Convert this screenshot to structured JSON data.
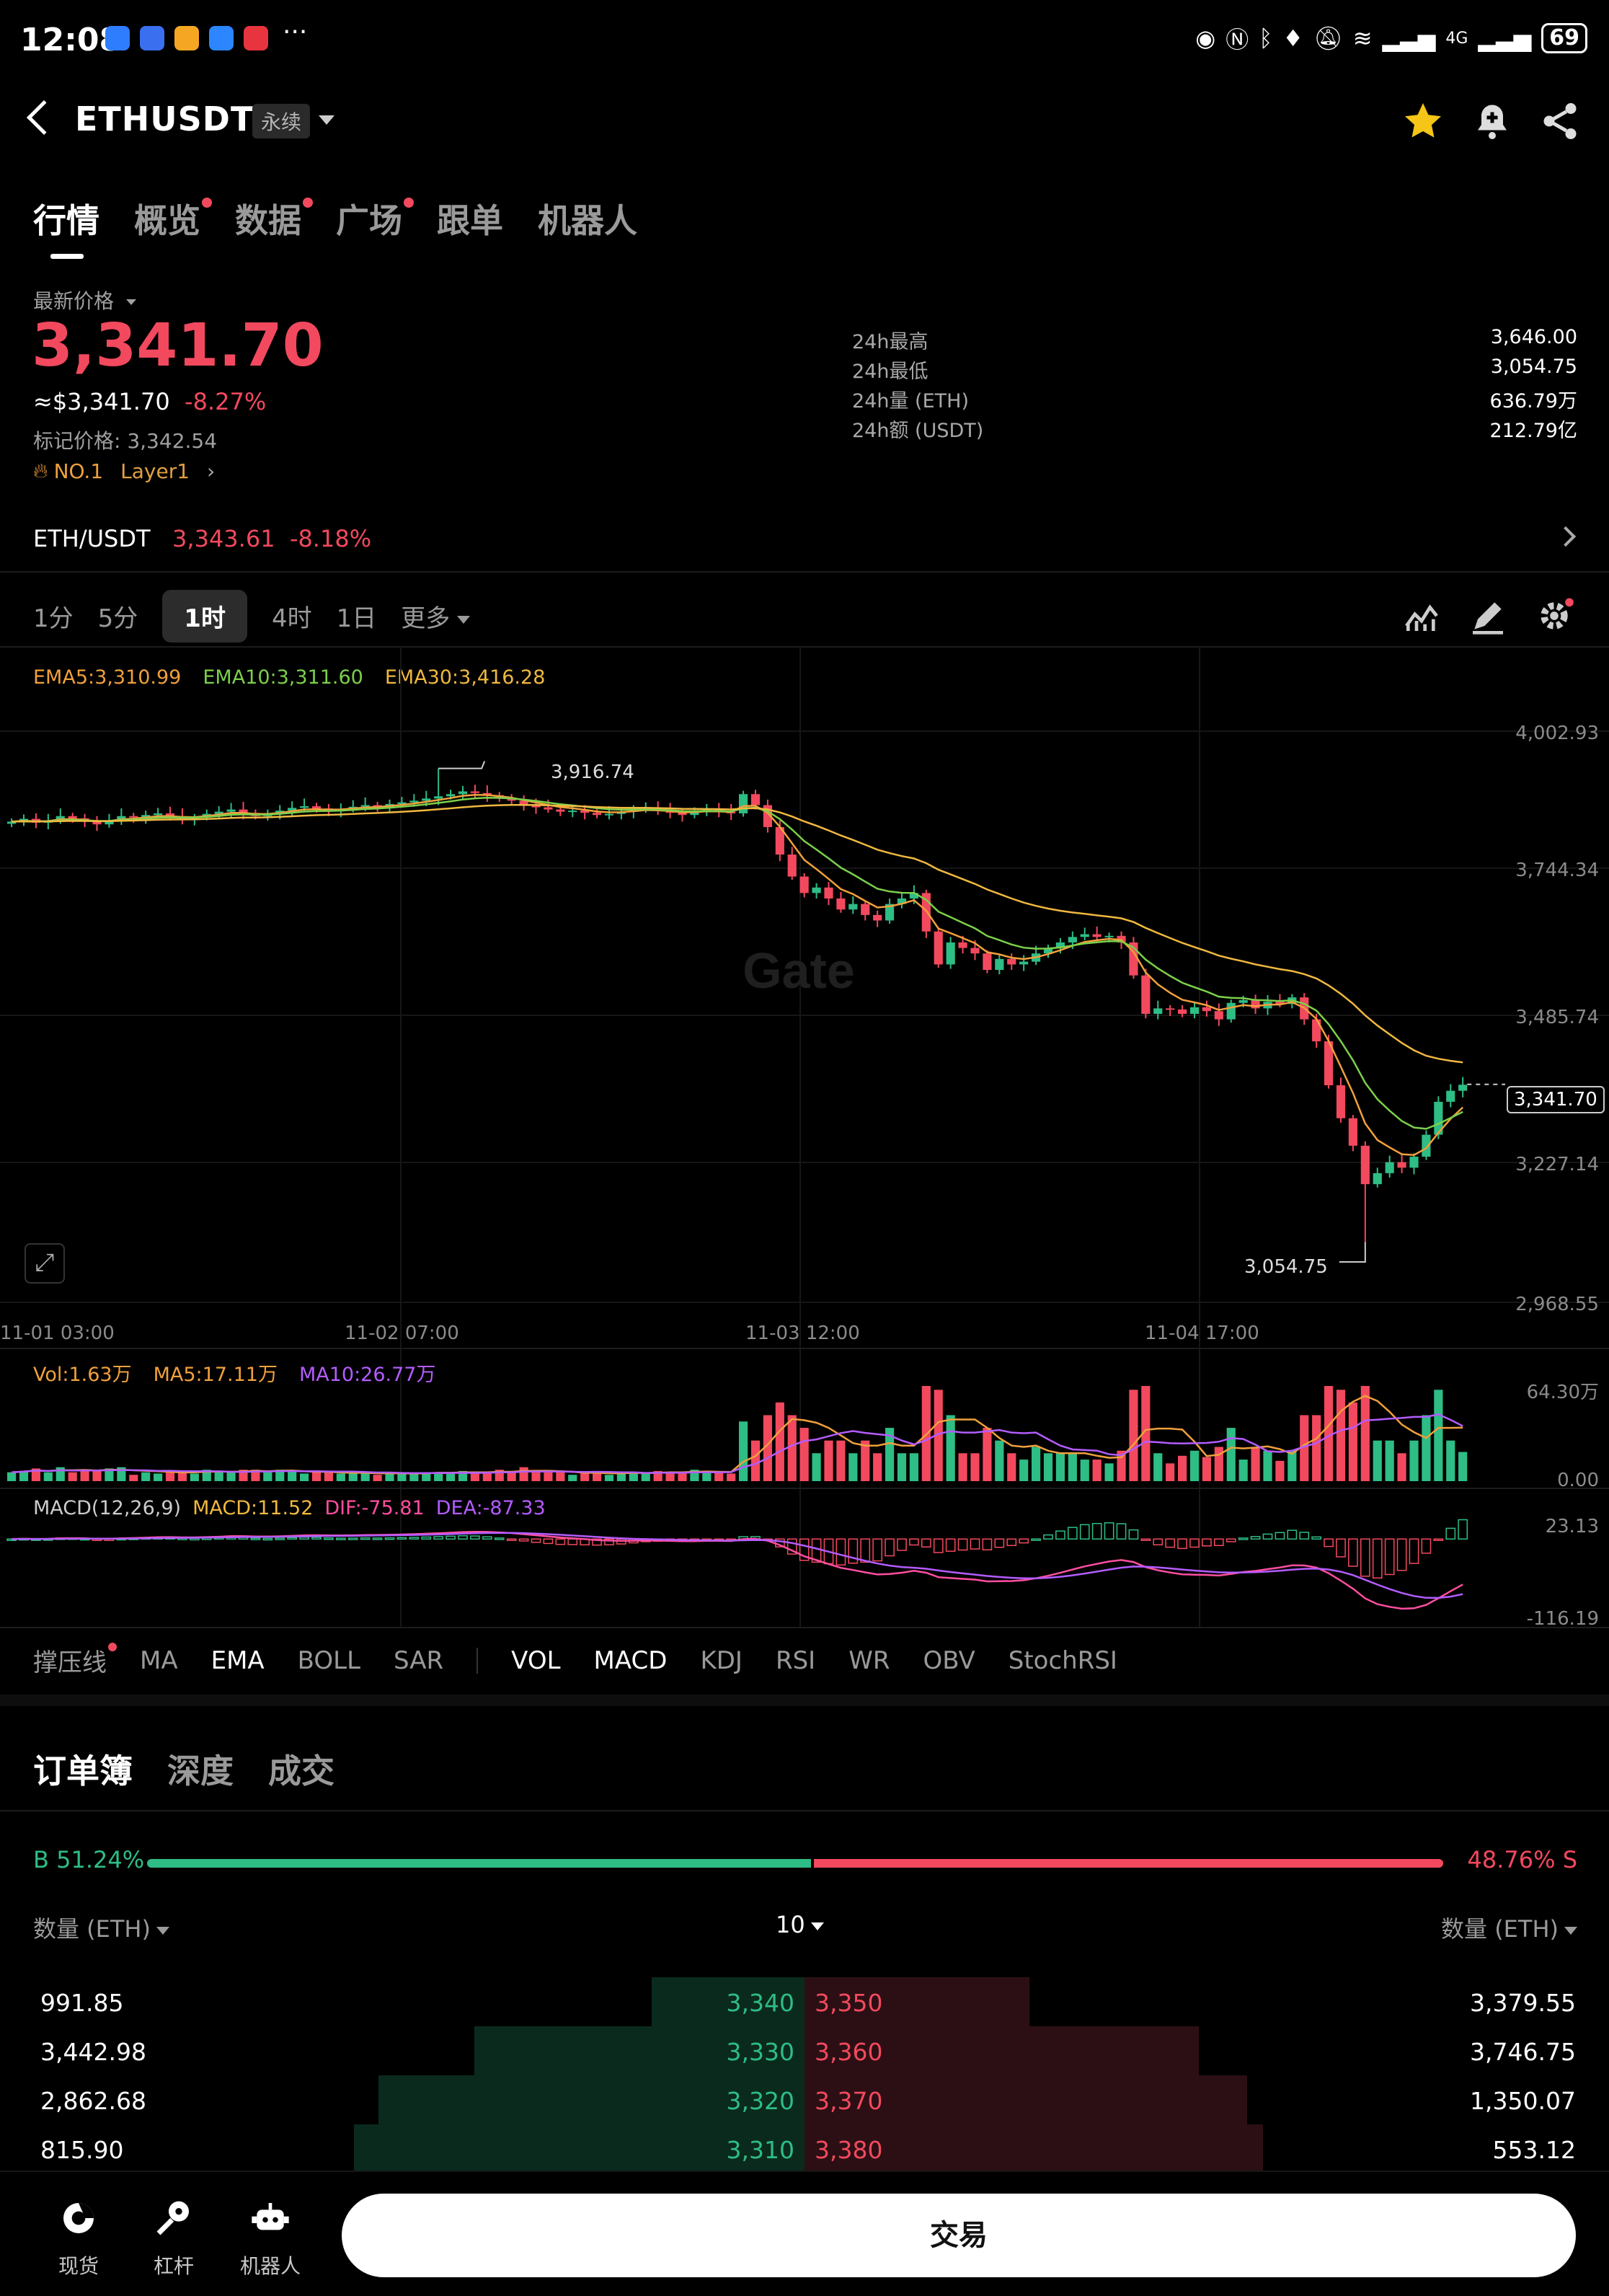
{
  "status_bar": {
    "time": "12:08",
    "battery": "69",
    "network": "4G"
  },
  "header": {
    "symbol": "ETHUSDT",
    "contract_type": "永续"
  },
  "tabs": [
    {
      "label": "行情",
      "active": true,
      "dot": false
    },
    {
      "label": "概览",
      "active": false,
      "dot": true
    },
    {
      "label": "数据",
      "active": false,
      "dot": true
    },
    {
      "label": "广场",
      "active": false,
      "dot": true
    },
    {
      "label": "跟单",
      "active": false,
      "dot": false
    },
    {
      "label": "机器人",
      "active": false,
      "dot": false
    }
  ],
  "price": {
    "label": "最新价格",
    "last": "3,341.70",
    "usd": "≈$3,341.70",
    "change": "-8.27%",
    "mark_label": "标记价格:",
    "mark_value": "3,342.54",
    "rank": "NO.1",
    "sector": "Layer1"
  },
  "stats": [
    {
      "k": "24h最高",
      "v": "3,646.00"
    },
    {
      "k": "24h最低",
      "v": "3,054.75"
    },
    {
      "k": "24h量 (ETH)",
      "v": "636.79万"
    },
    {
      "k": "24h额 (USDT)",
      "v": "212.79亿"
    }
  ],
  "spot": {
    "pair": "ETH/USDT",
    "price": "3,343.61",
    "change": "-8.18%"
  },
  "intervals": {
    "items": [
      "1分",
      "5分",
      "1时",
      "4时",
      "1日"
    ],
    "active": "1时",
    "more": "更多"
  },
  "legend": {
    "ema5": "EMA5:3,310.99",
    "ema10": "EMA10:3,311.60",
    "ema30": "EMA30:3,416.28",
    "vol": "Vol:1.63万",
    "vma5": "MA5:17.11万",
    "vma10": "MA10:26.77万",
    "macd_name": "MACD(12,26,9)",
    "macd": "MACD:11.52",
    "dif": "DIF:-75.81",
    "dea": "DEA:-87.33"
  },
  "chart_data": {
    "type": "candlestick",
    "price_axis": [
      "4,002.93",
      "3,744.34",
      "3,485.74",
      "3,227.14",
      "2,968.55"
    ],
    "price_range": [
      2968.55,
      4002.93
    ],
    "time_axis": [
      "11-01 03:00",
      "11-02 07:00",
      "11-03 12:00",
      "11-04 17:00"
    ],
    "high_marker": "3,916.74",
    "low_marker": "3,054.75",
    "last_price_marker": "3,341.70",
    "last_price": 3341.7,
    "close_series": [
      3820,
      3825,
      3818,
      3822,
      3830,
      3826,
      3820,
      3815,
      3822,
      3830,
      3828,
      3832,
      3835,
      3830,
      3825,
      3828,
      3834,
      3838,
      3842,
      3836,
      3830,
      3834,
      3840,
      3845,
      3848,
      3844,
      3840,
      3843,
      3847,
      3850,
      3848,
      3852,
      3855,
      3858,
      3862,
      3866,
      3870,
      3875,
      3872,
      3868,
      3862,
      3858,
      3850,
      3846,
      3842,
      3838,
      3840,
      3836,
      3832,
      3834,
      3838,
      3842,
      3845,
      3840,
      3836,
      3832,
      3838,
      3842,
      3838,
      3835,
      3870,
      3850,
      3810,
      3760,
      3720,
      3690,
      3700,
      3680,
      3660,
      3670,
      3650,
      3640,
      3670,
      3680,
      3690,
      3620,
      3560,
      3600,
      3590,
      3580,
      3550,
      3570,
      3560,
      3565,
      3580,
      3590,
      3600,
      3610,
      3615,
      3610,
      3612,
      3600,
      3540,
      3470,
      3480,
      3478,
      3470,
      3482,
      3475,
      3460,
      3490,
      3495,
      3480,
      3492,
      3488,
      3500,
      3460,
      3420,
      3340,
      3280,
      3230,
      3160,
      3180,
      3200,
      3190,
      3210,
      3250,
      3310,
      3330,
      3341
    ],
    "volume_axis": [
      "64.30万",
      "0.00"
    ],
    "macd_axis": [
      "23.13",
      "-116.19"
    ]
  },
  "indicator_tabs": {
    "main": [
      "撑压线",
      "MA",
      "EMA",
      "BOLL",
      "SAR"
    ],
    "sub": [
      "VOL",
      "MACD",
      "KDJ",
      "RSI",
      "WR",
      "OBV",
      "StochRSI"
    ],
    "active": [
      "EMA",
      "VOL",
      "MACD"
    ]
  },
  "orderbook": {
    "tabs": [
      "订单簿",
      "深度",
      "成交"
    ],
    "buy_ratio": "B 51.24%",
    "sell_ratio": "48.76% S",
    "buy_pct": 51.24,
    "qty_label_left": "数量 (ETH)",
    "qty_label_right": "数量 (ETH)",
    "precision": "10",
    "rows": [
      {
        "bid_qty": "991.85",
        "bid": "3,340",
        "ask": "3,350",
        "ask_qty": "3,379.55",
        "bid_depth": 0.19,
        "ask_depth": 0.28
      },
      {
        "bid_qty": "3,442.98",
        "bid": "3,330",
        "ask": "3,360",
        "ask_qty": "3,746.75",
        "bid_depth": 0.41,
        "ask_depth": 0.49
      },
      {
        "bid_qty": "2,862.68",
        "bid": "3,320",
        "ask": "3,370",
        "ask_qty": "1,350.07",
        "bid_depth": 0.53,
        "ask_depth": 0.55
      },
      {
        "bid_qty": "815.90",
        "bid": "3,310",
        "ask": "3,380",
        "ask_qty": "553.12",
        "bid_depth": 0.56,
        "ask_depth": 0.57
      }
    ]
  },
  "bottom_nav": [
    {
      "label": "现货",
      "icon": "spot-icon"
    },
    {
      "label": "杠杆",
      "icon": "margin-icon"
    },
    {
      "label": "机器人",
      "icon": "robot-icon"
    }
  ],
  "trade_button": "交易",
  "watermark": "Gate",
  "colors": {
    "up": "#2ebd85",
    "down": "#f2495e",
    "ema5": "#f0a03c",
    "ema10": "#7bd04a",
    "ema30": "#f0b840",
    "dif": "#ff4fa0",
    "dea": "#b45cff"
  }
}
